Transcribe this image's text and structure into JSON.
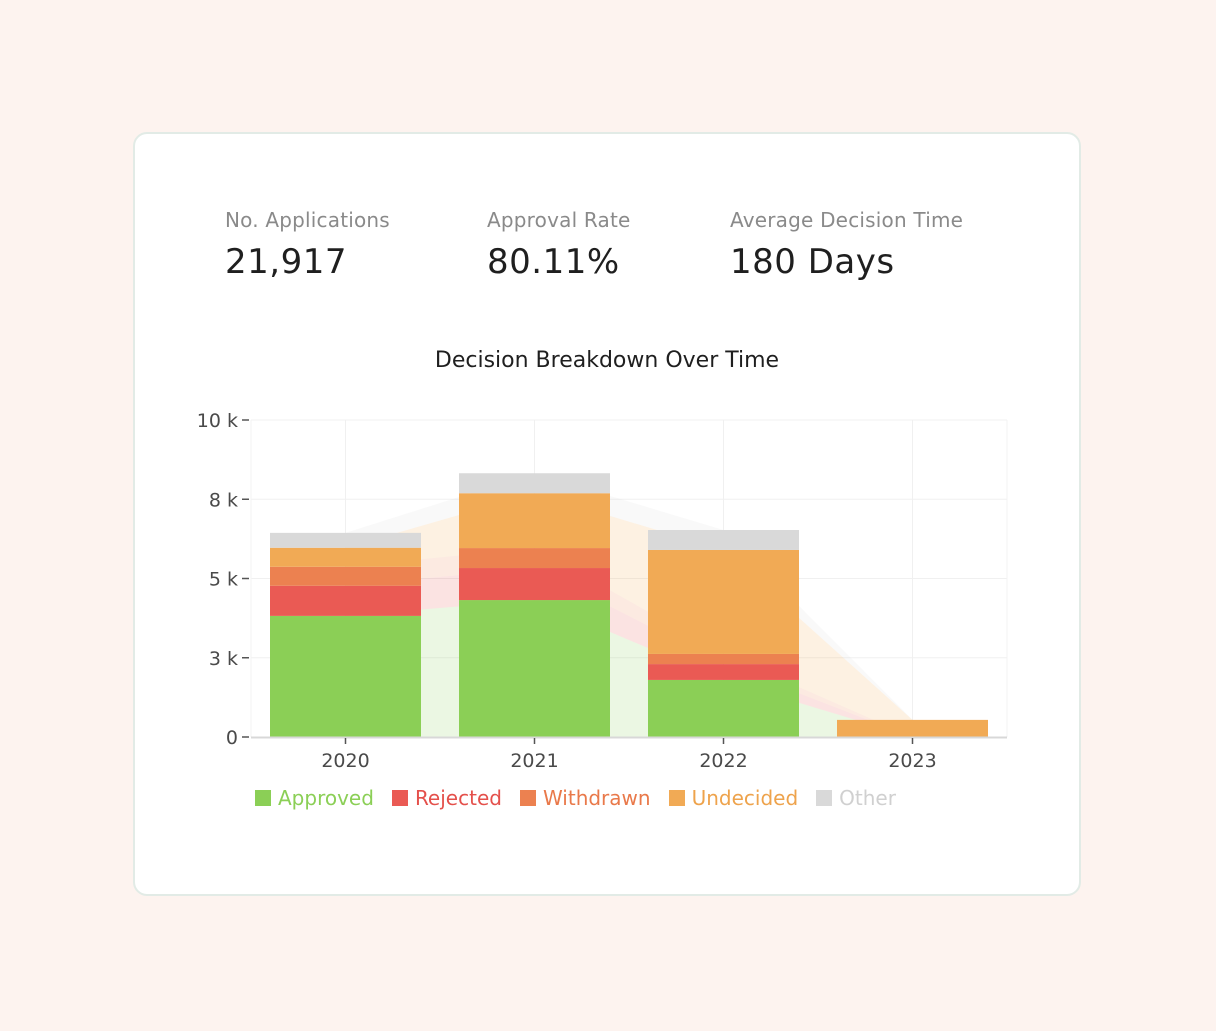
{
  "kpis": [
    {
      "label": "No. Applications",
      "value": "21,917"
    },
    {
      "label": "Approval Rate",
      "value": "80.11%"
    },
    {
      "label": "Average Decision Time",
      "value": "180 Days"
    }
  ],
  "chart_title": "Decision Breakdown Over Time",
  "colors": {
    "Approved": "#8bcf56",
    "Rejected": "#ea5a54",
    "Withdrawn": "#ec8150",
    "Undecided": "#f1aa55",
    "Other": "#d9d9d9"
  },
  "legend": [
    {
      "label": "Approved",
      "color": "#8bcf56",
      "text_color": "#8bcf56"
    },
    {
      "label": "Rejected",
      "color": "#ea5a54",
      "text_color": "#e4504b"
    },
    {
      "label": "Withdrawn",
      "color": "#ec8150",
      "text_color": "#e9794a"
    },
    {
      "label": "Undecided",
      "color": "#f1aa55",
      "text_color": "#eea34c"
    },
    {
      "label": "Other",
      "color": "#d9d9d9",
      "text_color": "#d0d0d0"
    }
  ],
  "chart_data": {
    "type": "bar",
    "stacked": true,
    "title": "Decision Breakdown Over Time",
    "xlabel": "",
    "ylabel": "",
    "categories": [
      "2020",
      "2021",
      "2022",
      "2023"
    ],
    "series": [
      {
        "name": "Approved",
        "values": [
          3820,
          4320,
          1800,
          0
        ]
      },
      {
        "name": "Rejected",
        "values": [
          950,
          1010,
          500,
          0
        ]
      },
      {
        "name": "Withdrawn",
        "values": [
          600,
          630,
          320,
          0
        ]
      },
      {
        "name": "Undecided",
        "values": [
          600,
          1730,
          3280,
          540
        ]
      },
      {
        "name": "Other",
        "values": [
          470,
          630,
          630,
          0
        ]
      }
    ],
    "ylim": [
      0,
      10000
    ],
    "y_ticks": [
      0,
      2500,
      5000,
      7500,
      10000
    ],
    "y_tick_labels": [
      "0",
      "3 k",
      "5 k",
      "8 k",
      "10 k"
    ],
    "grid": true,
    "legend_position": "bottom"
  }
}
